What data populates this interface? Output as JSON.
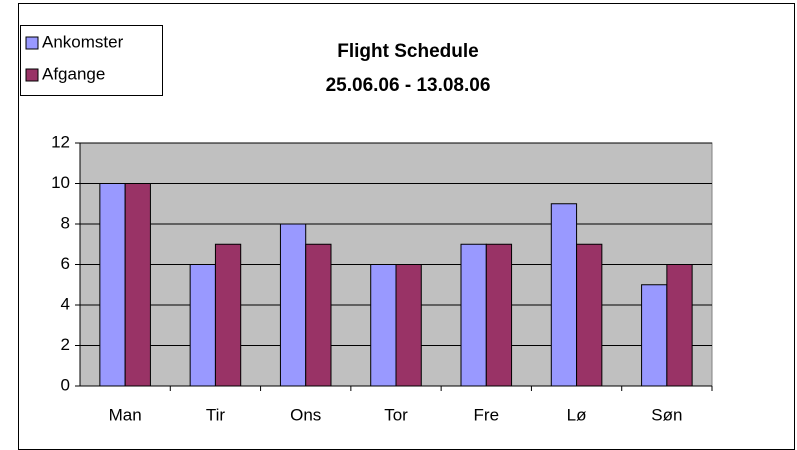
{
  "chart_data": {
    "type": "bar",
    "title": "Flight Schedule",
    "subtitle": "25.06.06 - 13.08.06",
    "categories": [
      "Man",
      "Tir",
      "Ons",
      "Tor",
      "Fre",
      "Lø",
      "Søn"
    ],
    "series": [
      {
        "name": "Ankomster",
        "color": "#9999ff",
        "values": [
          10,
          6,
          8,
          6,
          7,
          9,
          5
        ]
      },
      {
        "name": "Afgange",
        "color": "#993366",
        "values": [
          10,
          7,
          7,
          6,
          7,
          7,
          6
        ]
      }
    ],
    "ylim": [
      0,
      12
    ],
    "yticks": [
      0,
      2,
      4,
      6,
      8,
      10,
      12
    ],
    "grid": true,
    "legend": "top-left",
    "plot_background": "#c0c0c0"
  }
}
